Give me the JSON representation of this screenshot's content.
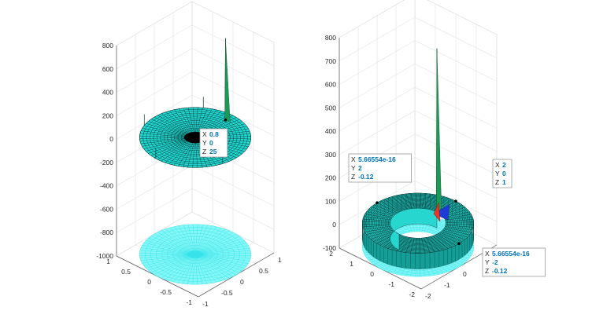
{
  "chart_data": [
    {
      "type": "surface3d",
      "shape": "disk",
      "r_inner": 0,
      "r_outer": 1,
      "xlim": [
        -1,
        1
      ],
      "ylim": [
        -1,
        1
      ],
      "zlim": [
        -1000,
        800
      ],
      "x_ticks": [
        "-1",
        "-0.5",
        "0",
        "0.5",
        "1"
      ],
      "y_ticks": [
        "-1",
        "-0.5",
        "0",
        "0.5",
        "1"
      ],
      "z_ticks": [
        "-1000",
        "-800",
        "-600",
        "-400",
        "-200",
        "0",
        "200",
        "400",
        "600",
        "800"
      ],
      "grid": true,
      "surface_color": "#1fd9d2",
      "projection_color": "#7ff7f7",
      "spike": {
        "x": 0.8,
        "y": 0,
        "z": 700
      },
      "datatips": [
        {
          "x": "0.8",
          "y": "0",
          "z": "25"
        }
      ]
    },
    {
      "type": "surface3d",
      "shape": "annulus",
      "r_inner": 1,
      "r_outer": 2,
      "xlim": [
        -2,
        2
      ],
      "ylim": [
        -2,
        2
      ],
      "zlim": [
        -100,
        800
      ],
      "x_ticks": [
        "-2",
        "-1",
        "0",
        "1",
        "2"
      ],
      "y_ticks": [
        "-2",
        "-1",
        "0",
        "1",
        "2"
      ],
      "z_ticks": [
        "-100",
        "0",
        "100",
        "200",
        "300",
        "400",
        "500",
        "600",
        "700",
        "800"
      ],
      "grid": true,
      "surface_color": "#1fbfb6",
      "projection_color": "#7ff7f7",
      "spike": {
        "x": 1,
        "y": 0,
        "z": 700
      },
      "datatips": [
        {
          "x": "5.66554e-16",
          "y": "2",
          "z": "-0.12"
        },
        {
          "x": "2",
          "y": "0",
          "z": "1"
        },
        {
          "x": "5.66554e-16",
          "y": "-2",
          "z": "-0.12"
        }
      ]
    }
  ]
}
